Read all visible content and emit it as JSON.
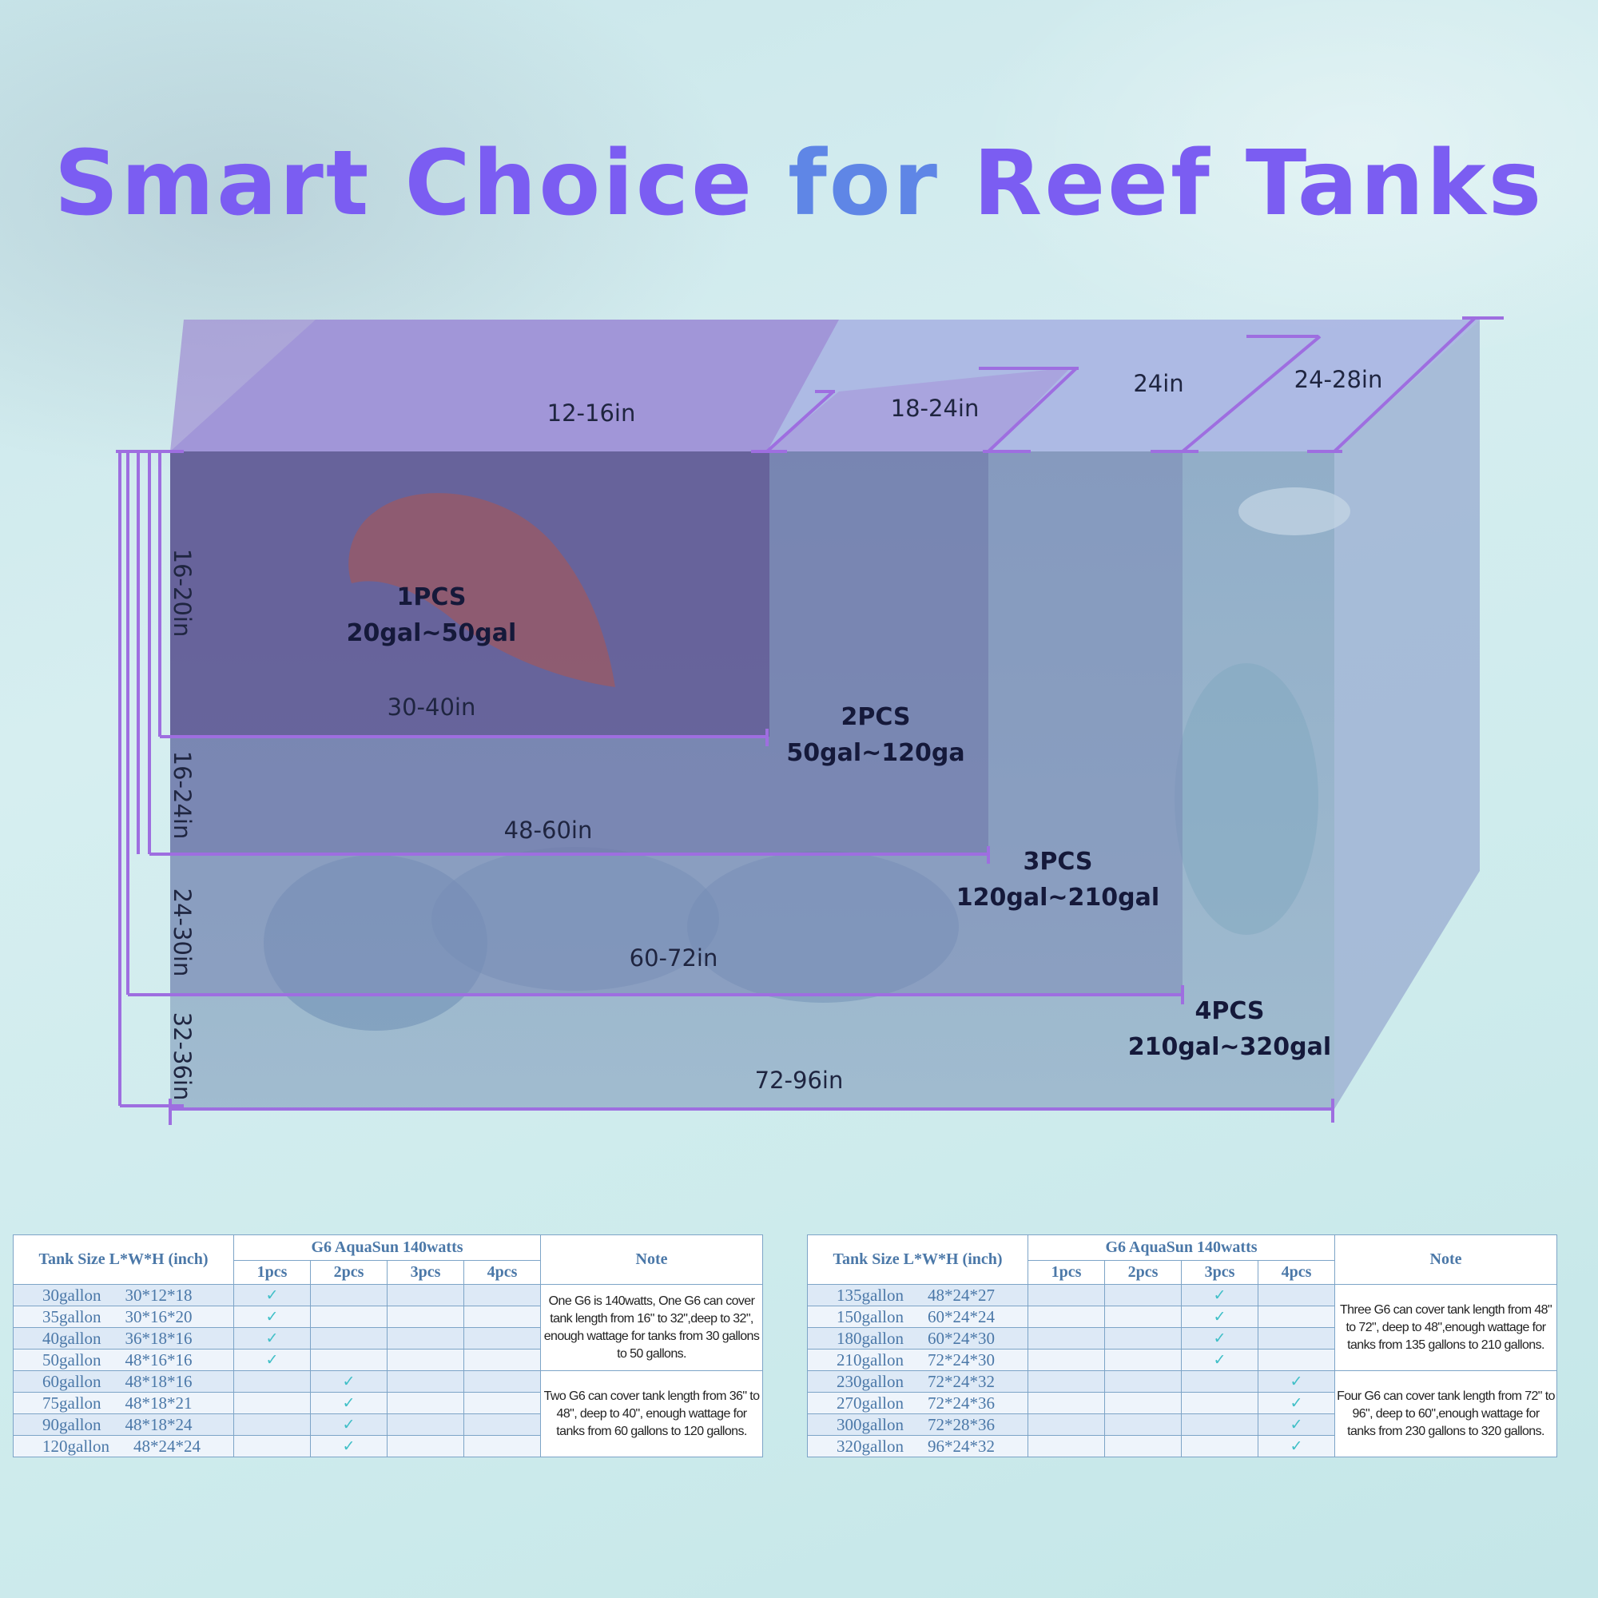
{
  "title": {
    "part1": "Smart Choice ",
    "part2": "for",
    "part3": " Reef Tanks"
  },
  "diagram": {
    "depth_labels": [
      "12-16in",
      "18-24in",
      "24in",
      "24-28in"
    ],
    "height_labels": [
      "16-20in",
      "16-24in",
      "24-30in",
      "32-36in"
    ],
    "length_labels": [
      "30-40in",
      "48-60in",
      "60-72in",
      "72-96in"
    ],
    "zones": [
      {
        "pcs": "1PCS",
        "range": "20gal~50gal"
      },
      {
        "pcs": "2PCS",
        "range": "50gal~120ga"
      },
      {
        "pcs": "3PCS",
        "range": "120gal~210gal"
      },
      {
        "pcs": "4PCS",
        "range": "210gal~320gal"
      }
    ]
  },
  "table_headers": {
    "tank_size": "Tank Size L*W*H (inch)",
    "product": "G6 AquaSun 140watts",
    "note": "Note",
    "pcs": [
      "1pcs",
      "2pcs",
      "3pcs",
      "4pcs"
    ]
  },
  "check_mark": "✓",
  "tables": [
    {
      "rows": [
        {
          "gallon": "30gallon",
          "dims": "30*12*18",
          "pcs": 1
        },
        {
          "gallon": "35gallon",
          "dims": "30*16*20",
          "pcs": 1
        },
        {
          "gallon": "40gallon",
          "dims": "36*18*16",
          "pcs": 1
        },
        {
          "gallon": "50gallon",
          "dims": "48*16*16",
          "pcs": 1
        },
        {
          "gallon": "60gallon",
          "dims": "48*18*16",
          "pcs": 2
        },
        {
          "gallon": "75gallon",
          "dims": "48*18*21",
          "pcs": 2
        },
        {
          "gallon": "90gallon",
          "dims": "48*18*24",
          "pcs": 2
        },
        {
          "gallon": "120gallon",
          "dims": "48*24*24",
          "pcs": 2
        }
      ],
      "notes": [
        "One G6 is 140watts, One G6 can cover tank length from 16\" to 32\",deep  to 32\", enough wattage for tanks from 30 gallons to 50 gallons.",
        "Two G6 can cover tank length from 36\" to 48\", deep to 40\", enough wattage for tanks from 60 gallons to 120 gallons."
      ]
    },
    {
      "rows": [
        {
          "gallon": "135gallon",
          "dims": "48*24*27",
          "pcs": 3
        },
        {
          "gallon": "150gallon",
          "dims": "60*24*24",
          "pcs": 3
        },
        {
          "gallon": "180gallon",
          "dims": "60*24*30",
          "pcs": 3
        },
        {
          "gallon": "210gallon",
          "dims": "72*24*30",
          "pcs": 3
        },
        {
          "gallon": "230gallon",
          "dims": "72*24*32",
          "pcs": 4
        },
        {
          "gallon": "270gallon",
          "dims": "72*24*36",
          "pcs": 4
        },
        {
          "gallon": "300gallon",
          "dims": "72*28*36",
          "pcs": 4
        },
        {
          "gallon": "320gallon",
          "dims": "96*24*32",
          "pcs": 4
        }
      ],
      "notes": [
        "Three G6 can cover tank length from 48\" to 72\", deep to 48\",enough wattage for tanks from 135 gallons to 210 gallons.",
        "Four G6 can cover tank length from 72\" to 96\", deep to 60\",enough wattage for tanks from 230 gallons to 320 gallons."
      ]
    }
  ]
}
